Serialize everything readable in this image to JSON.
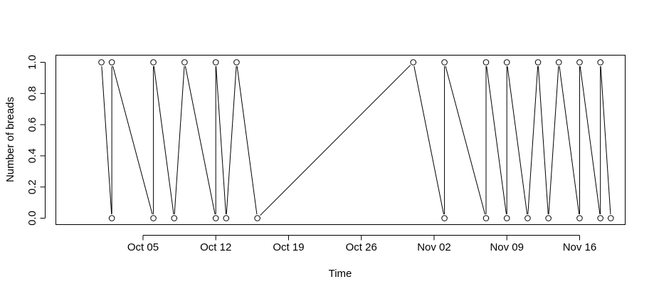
{
  "chart_data": {
    "type": "line",
    "title": "",
    "xlabel": "Time",
    "ylabel": "Number of breads",
    "xlim": [
      "2018-09-27",
      "2018-11-20"
    ],
    "ylim": [
      0,
      1
    ],
    "x_ticks": [
      {
        "date": "2018-10-05",
        "label": "Oct 05"
      },
      {
        "date": "2018-10-12",
        "label": "Oct 12"
      },
      {
        "date": "2018-10-19",
        "label": "Oct 19"
      },
      {
        "date": "2018-10-26",
        "label": "Oct 26"
      },
      {
        "date": "2018-11-02",
        "label": "Nov 02"
      },
      {
        "date": "2018-11-09",
        "label": "Nov 09"
      },
      {
        "date": "2018-11-16",
        "label": "Nov 16"
      }
    ],
    "y_ticks": [
      "0.0",
      "0.2",
      "0.4",
      "0.6",
      "0.8",
      "1.0"
    ],
    "series": [
      {
        "points": [
          {
            "x": "2018-10-01",
            "y": 1
          },
          {
            "x": "2018-10-02",
            "y": 0
          },
          {
            "x": "2018-10-02",
            "y": 1
          },
          {
            "x": "2018-10-06",
            "y": 0
          },
          {
            "x": "2018-10-06",
            "y": 1
          },
          {
            "x": "2018-10-08",
            "y": 0
          },
          {
            "x": "2018-10-09",
            "y": 1
          },
          {
            "x": "2018-10-12",
            "y": 0
          },
          {
            "x": "2018-10-12",
            "y": 1
          },
          {
            "x": "2018-10-13",
            "y": 0
          },
          {
            "x": "2018-10-14",
            "y": 1
          },
          {
            "x": "2018-10-16",
            "y": 0
          },
          {
            "x": "2018-10-31",
            "y": 1
          },
          {
            "x": "2018-11-03",
            "y": 0
          },
          {
            "x": "2018-11-03",
            "y": 1
          },
          {
            "x": "2018-11-07",
            "y": 0
          },
          {
            "x": "2018-11-07",
            "y": 1
          },
          {
            "x": "2018-11-09",
            "y": 0
          },
          {
            "x": "2018-11-09",
            "y": 1
          },
          {
            "x": "2018-11-11",
            "y": 0
          },
          {
            "x": "2018-11-12",
            "y": 1
          },
          {
            "x": "2018-11-13",
            "y": 0
          },
          {
            "x": "2018-11-14",
            "y": 1
          },
          {
            "x": "2018-11-16",
            "y": 0
          },
          {
            "x": "2018-11-16",
            "y": 1
          },
          {
            "x": "2018-11-18",
            "y": 0
          },
          {
            "x": "2018-11-18",
            "y": 1
          },
          {
            "x": "2018-11-19",
            "y": 0
          }
        ]
      }
    ],
    "style": "both (points and lines)",
    "grid": false,
    "legend": "none"
  }
}
